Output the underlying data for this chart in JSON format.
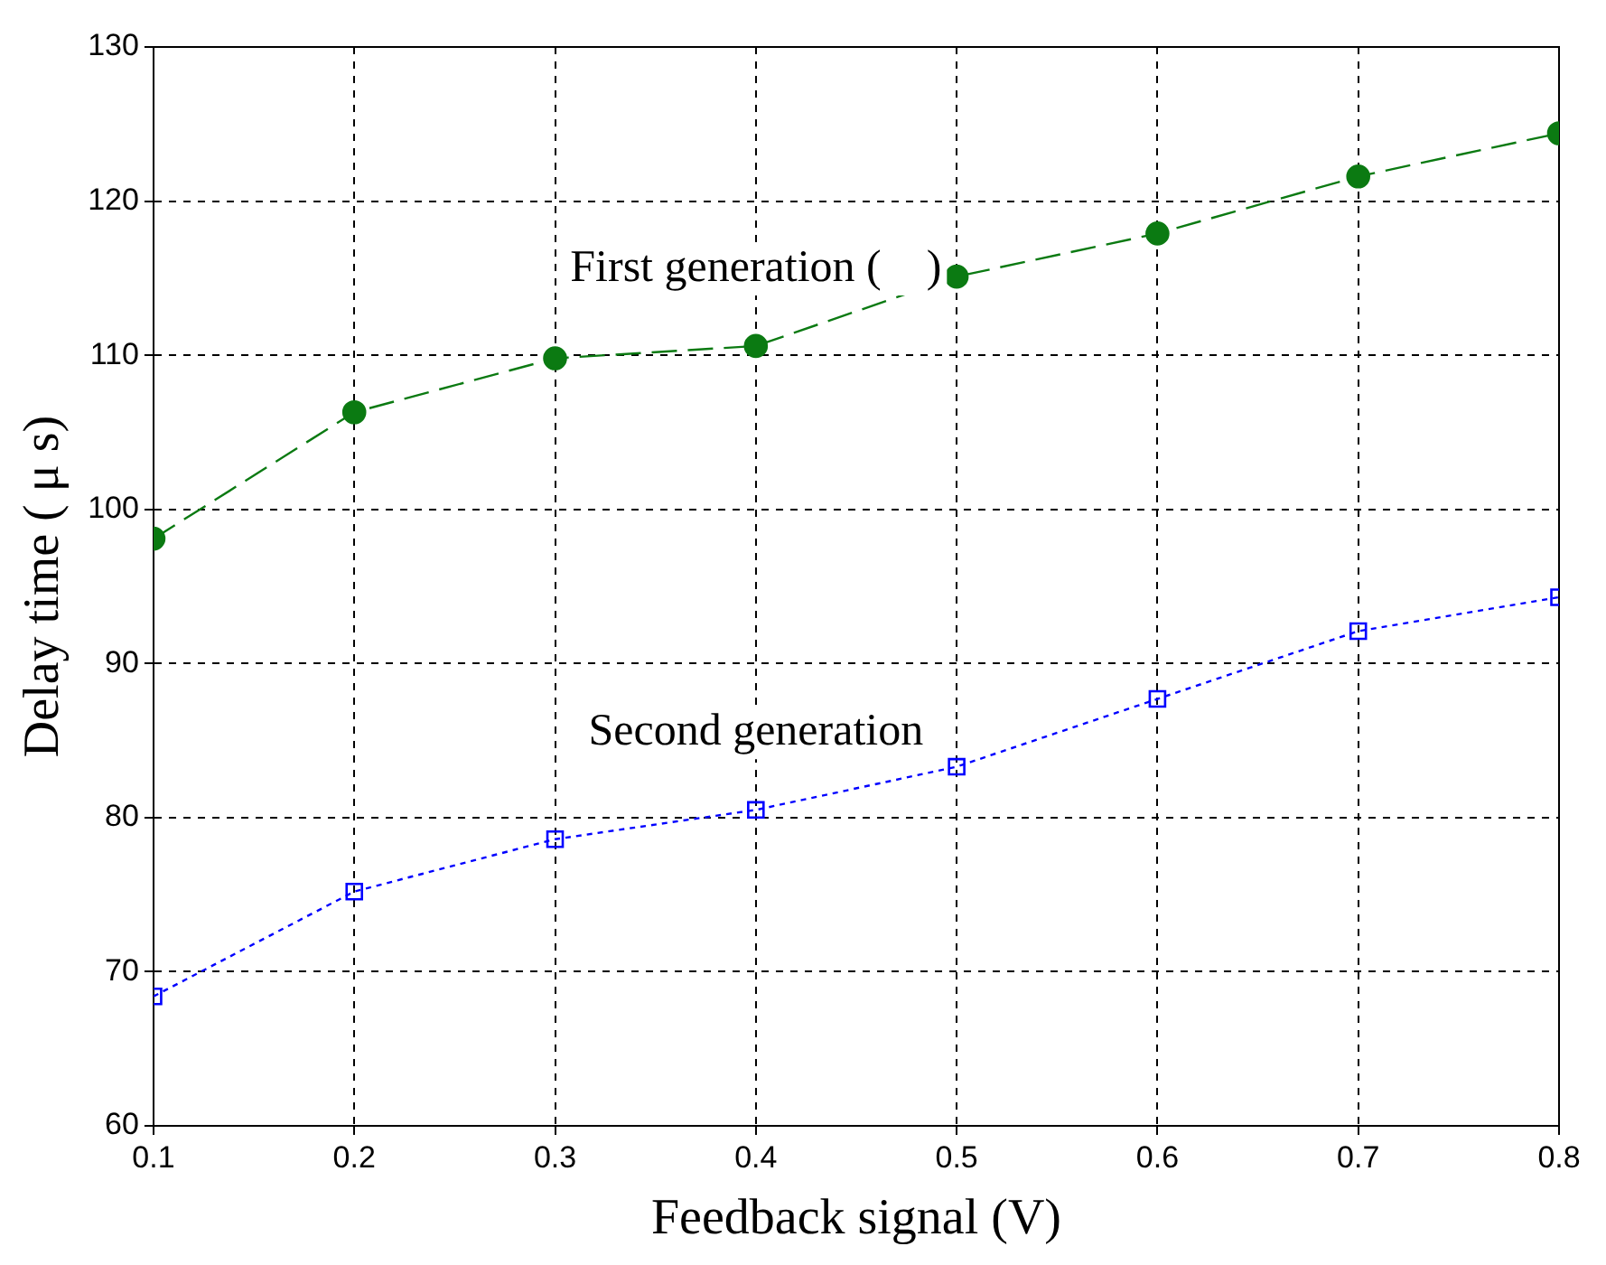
{
  "chart_data": {
    "type": "line",
    "xlabel": "Feedback signal (V)",
    "ylabel": "Delay time ( μ s)",
    "x": [
      0.1,
      0.2,
      0.3,
      0.4,
      0.5,
      0.6,
      0.7,
      0.8
    ],
    "series": [
      {
        "name": "First generation (    )",
        "color": "#0b7a12",
        "marker": "circle",
        "line_style": "dashed",
        "values": [
          98.1,
          106.3,
          109.8,
          110.6,
          115.1,
          117.9,
          121.6,
          124.4
        ]
      },
      {
        "name": "Second generation",
        "color": "#0000ff",
        "marker": "square",
        "line_style": "dotted",
        "values": [
          68.4,
          75.2,
          78.6,
          80.5,
          83.3,
          87.7,
          92.1,
          94.3
        ]
      }
    ],
    "xlim": [
      0.1,
      0.8
    ],
    "xticks": [
      0.1,
      0.2,
      0.3,
      0.4,
      0.5,
      0.6,
      0.7,
      0.8
    ],
    "ylim": [
      60,
      130
    ],
    "yticks": [
      60,
      70,
      80,
      90,
      100,
      110,
      120,
      130
    ],
    "grid": true,
    "legend": false
  }
}
